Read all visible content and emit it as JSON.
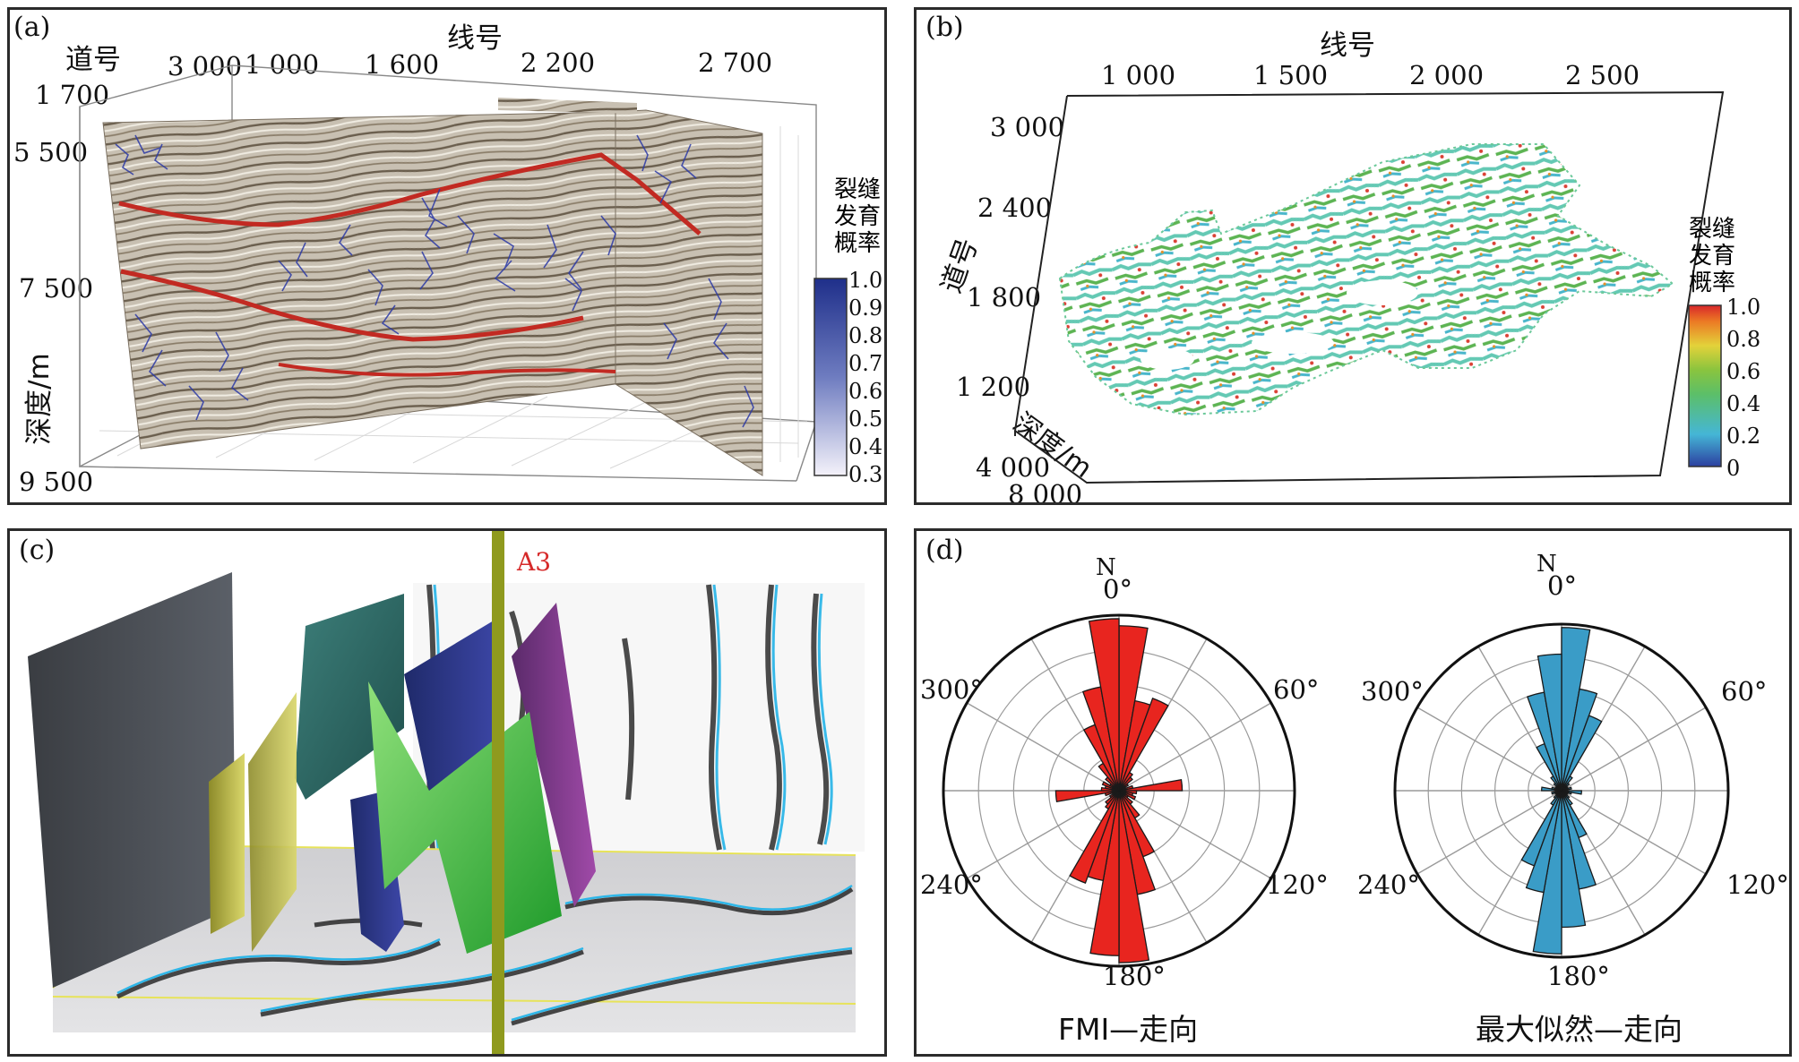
{
  "panel_a": {
    "letter": "(a)",
    "trace_label": "道号",
    "line_label": "线号",
    "depth_label": "深度/m",
    "trace_tick": "1 700",
    "top_ticks": [
      "3 000",
      "1 000",
      "1 600",
      "2 200",
      "2 700"
    ],
    "depth_ticks": [
      "5 500",
      "7 500",
      "9 500"
    ],
    "colorbar_title": [
      "裂缝",
      "发育",
      "概率"
    ],
    "colorbar_ticks": [
      "1.0",
      "0.9",
      "0.8",
      "0.7",
      "0.6",
      "0.5",
      "0.4",
      "0.3"
    ]
  },
  "panel_b": {
    "letter": "(b)",
    "line_label": "线号",
    "trace_label": "道号",
    "depth_label": "深度/m",
    "line_ticks": [
      "1 000",
      "1 500",
      "2 000",
      "2 500"
    ],
    "trace_ticks": [
      "3 000",
      "2 400",
      "1 800",
      "1 200"
    ],
    "depth_ticks": [
      "4 000",
      "8 000"
    ],
    "colorbar_title": [
      "裂缝",
      "发育",
      "概率"
    ],
    "colorbar_ticks": [
      "1.0",
      "0.8",
      "0.6",
      "0.4",
      "0.2",
      "0"
    ]
  },
  "panel_c": {
    "letter": "(c)",
    "well_label": "A3",
    "colors": {
      "well": "#8f9a1e",
      "label": "#d62a2a"
    }
  },
  "panel_d": {
    "letter": "(d)",
    "chart_data": [
      {
        "type": "rose",
        "title": "FMI—走向",
        "north_label": "N",
        "angle_labels": [
          "0°",
          "60°",
          "120°",
          "180°",
          "240°",
          "300°"
        ],
        "bin_width_deg": 10,
        "color": "#e8251f",
        "bins": [
          {
            "start": 0,
            "value": 0.94
          },
          {
            "start": 10,
            "value": 0.52
          },
          {
            "start": 20,
            "value": 0.56
          },
          {
            "start": 30,
            "value": 0.12
          },
          {
            "start": 40,
            "value": 0.1
          },
          {
            "start": 50,
            "value": 0.06
          },
          {
            "start": 60,
            "value": 0.04
          },
          {
            "start": 70,
            "value": 0.08
          },
          {
            "start": 80,
            "value": 0.36
          },
          {
            "start": 90,
            "value": 0.1
          },
          {
            "start": 100,
            "value": 0.08
          },
          {
            "start": 110,
            "value": 0.1
          },
          {
            "start": 120,
            "value": 0.06
          },
          {
            "start": 130,
            "value": 0.1
          },
          {
            "start": 140,
            "value": 0.18
          },
          {
            "start": 150,
            "value": 0.4
          },
          {
            "start": 160,
            "value": 0.6
          },
          {
            "start": 170,
            "value": 0.98
          },
          {
            "start": 180,
            "value": 0.94
          },
          {
            "start": 190,
            "value": 0.52
          },
          {
            "start": 200,
            "value": 0.56
          },
          {
            "start": 210,
            "value": 0.12
          },
          {
            "start": 220,
            "value": 0.1
          },
          {
            "start": 230,
            "value": 0.06
          },
          {
            "start": 240,
            "value": 0.04
          },
          {
            "start": 250,
            "value": 0.08
          },
          {
            "start": 260,
            "value": 0.36
          },
          {
            "start": 270,
            "value": 0.1
          },
          {
            "start": 280,
            "value": 0.08
          },
          {
            "start": 290,
            "value": 0.1
          },
          {
            "start": 300,
            "value": 0.06
          },
          {
            "start": 310,
            "value": 0.1
          },
          {
            "start": 320,
            "value": 0.18
          },
          {
            "start": 330,
            "value": 0.4
          },
          {
            "start": 340,
            "value": 0.6
          },
          {
            "start": 350,
            "value": 0.98
          }
        ]
      },
      {
        "type": "rose",
        "title": "最大似然—走向",
        "north_label": "N",
        "angle_labels": [
          "0°",
          "60°",
          "120°",
          "180°",
          "240°",
          "300°"
        ],
        "bin_width_deg": 10,
        "color": "#3a9cc7",
        "bins": [
          {
            "start": 0,
            "value": 0.98
          },
          {
            "start": 10,
            "value": 0.62
          },
          {
            "start": 20,
            "value": 0.48
          },
          {
            "start": 30,
            "value": 0.1
          },
          {
            "start": 40,
            "value": 0.06
          },
          {
            "start": 50,
            "value": 0.04
          },
          {
            "start": 60,
            "value": 0.04
          },
          {
            "start": 70,
            "value": 0.06
          },
          {
            "start": 80,
            "value": 0.02
          },
          {
            "start": 90,
            "value": 0.12
          },
          {
            "start": 100,
            "value": 0.06
          },
          {
            "start": 110,
            "value": 0.04
          },
          {
            "start": 120,
            "value": 0.04
          },
          {
            "start": 130,
            "value": 0.06
          },
          {
            "start": 140,
            "value": 0.1
          },
          {
            "start": 150,
            "value": 0.3
          },
          {
            "start": 160,
            "value": 0.6
          },
          {
            "start": 170,
            "value": 0.82
          },
          {
            "start": 180,
            "value": 0.98
          },
          {
            "start": 190,
            "value": 0.62
          },
          {
            "start": 200,
            "value": 0.48
          },
          {
            "start": 210,
            "value": 0.1
          },
          {
            "start": 220,
            "value": 0.06
          },
          {
            "start": 230,
            "value": 0.04
          },
          {
            "start": 240,
            "value": 0.04
          },
          {
            "start": 250,
            "value": 0.06
          },
          {
            "start": 260,
            "value": 0.02
          },
          {
            "start": 270,
            "value": 0.12
          },
          {
            "start": 280,
            "value": 0.06
          },
          {
            "start": 290,
            "value": 0.04
          },
          {
            "start": 300,
            "value": 0.04
          },
          {
            "start": 310,
            "value": 0.06
          },
          {
            "start": 320,
            "value": 0.1
          },
          {
            "start": 330,
            "value": 0.3
          },
          {
            "start": 340,
            "value": 0.6
          },
          {
            "start": 350,
            "value": 0.82
          }
        ]
      }
    ]
  }
}
